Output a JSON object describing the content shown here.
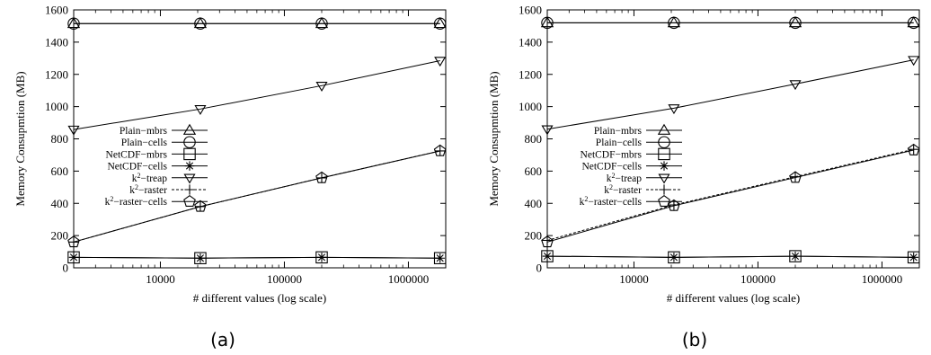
{
  "chart_data": [
    {
      "type": "line",
      "caption": "(a)",
      "xlabel": "# different values (log scale)",
      "ylabel": "Memory Consupmtion (MB)",
      "xscale": "log",
      "xlim": [
        2000,
        2000000
      ],
      "ylim": [
        0,
        1600
      ],
      "xticks": [
        10000,
        100000,
        1000000
      ],
      "xtick_labels": [
        "10000",
        "100000",
        "1000000"
      ],
      "yticks": [
        0,
        200,
        400,
        600,
        800,
        1000,
        1200,
        1400,
        1600
      ],
      "yticks_labels": [
        "0",
        "200",
        "400",
        "600",
        "800",
        "1000",
        "1200",
        "1400",
        "1600"
      ],
      "grid": false,
      "legend_position": "left-middle",
      "x": [
        2000,
        21000,
        200000,
        1800000
      ],
      "series": [
        {
          "name": "Plain−mbrs",
          "marker": "triangle",
          "values": [
            1515,
            1515,
            1515,
            1515
          ]
        },
        {
          "name": "Plain−cells",
          "marker": "circle",
          "values": [
            1515,
            1515,
            1515,
            1515
          ]
        },
        {
          "name": "NetCDF−mbrs",
          "marker": "square",
          "values": [
            65,
            60,
            65,
            60
          ]
        },
        {
          "name": "NetCDF−cells",
          "marker": "star",
          "values": [
            65,
            60,
            65,
            60
          ]
        },
        {
          "name_prefix": "k",
          "name_sup": "2",
          "name_suffix": "−treap",
          "marker": "inverted-triangle",
          "values": [
            858,
            985,
            1130,
            1285
          ]
        },
        {
          "name_prefix": "k",
          "name_sup": "2",
          "name_suffix": "−raster",
          "marker": "plus",
          "dashed": true,
          "values": [
            160,
            380,
            558,
            725
          ]
        },
        {
          "name_prefix": "k",
          "name_sup": "2",
          "name_suffix": "−raster−cells",
          "marker": "pentagon",
          "values": [
            160,
            380,
            558,
            725
          ]
        }
      ]
    },
    {
      "type": "line",
      "caption": "(b)",
      "xlabel": "# different values (log scale)",
      "ylabel": "Memory Consupmtion (MB)",
      "xscale": "log",
      "xlim": [
        2000,
        2000000
      ],
      "ylim": [
        0,
        1600
      ],
      "xticks": [
        10000,
        100000,
        1000000
      ],
      "xtick_labels": [
        "10000",
        "100000",
        "1000000"
      ],
      "yticks": [
        0,
        200,
        400,
        600,
        800,
        1000,
        1200,
        1400,
        1600
      ],
      "yticks_labels": [
        "0",
        "200",
        "400",
        "600",
        "800",
        "1000",
        "1200",
        "1400",
        "1600"
      ],
      "grid": false,
      "legend_position": "left-middle",
      "x": [
        2000,
        21000,
        200000,
        1800000
      ],
      "series": [
        {
          "name": "Plain−mbrs",
          "marker": "triangle",
          "values": [
            1520,
            1520,
            1520,
            1520
          ]
        },
        {
          "name": "Plain−cells",
          "marker": "circle",
          "values": [
            1520,
            1520,
            1520,
            1520
          ]
        },
        {
          "name": "NetCDF−mbrs",
          "marker": "square",
          "values": [
            72,
            65,
            72,
            65
          ]
        },
        {
          "name": "NetCDF−cells",
          "marker": "star",
          "values": [
            72,
            65,
            72,
            65
          ]
        },
        {
          "name_prefix": "k",
          "name_sup": "2",
          "name_suffix": "−treap",
          "marker": "inverted-triangle",
          "values": [
            860,
            990,
            1140,
            1290
          ]
        },
        {
          "name_prefix": "k",
          "name_sup": "2",
          "name_suffix": "−raster",
          "marker": "plus",
          "dashed": true,
          "values": [
            170,
            390,
            565,
            735
          ]
        },
        {
          "name_prefix": "k",
          "name_sup": "2",
          "name_suffix": "−raster−cells",
          "marker": "pentagon",
          "values": [
            160,
            385,
            560,
            730
          ]
        }
      ]
    }
  ]
}
